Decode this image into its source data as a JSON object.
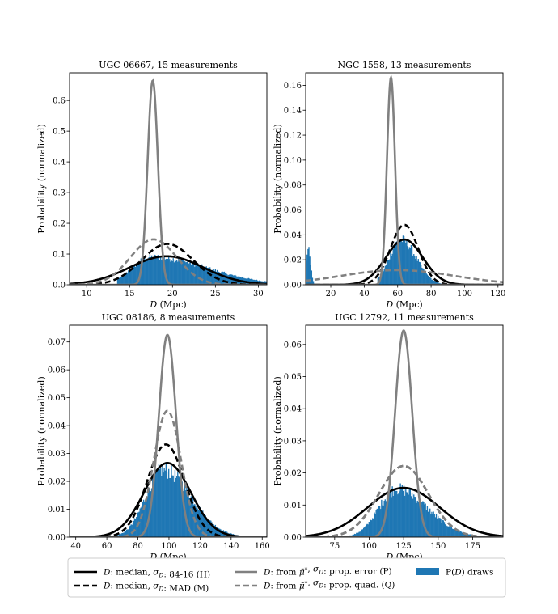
{
  "colors": {
    "hist": "#1f77b4",
    "median_line": "#000000",
    "prop_line": "#808080",
    "legend_frame": "#cccccc"
  },
  "legend": {
    "placement": "bottom-center",
    "entries": [
      {
        "key": "H",
        "label": "D: median, σ_D: 84-16 (H)",
        "color": "#000000",
        "style": "solid"
      },
      {
        "key": "M",
        "label": "D: median, σ_D: MAD (M)",
        "color": "#000000",
        "style": "dashed"
      },
      {
        "key": "P",
        "label": "D: from μ̄*, σ_D: prop. error (P)",
        "color": "#808080",
        "style": "solid"
      },
      {
        "key": "Q",
        "label": "D: from μ̄*, σ_D: prop. quad. (Q)",
        "color": "#808080",
        "style": "dashed"
      },
      {
        "key": "hist",
        "label": "P(D) draws",
        "color": "#1f77b4",
        "style": "patch"
      }
    ]
  },
  "chart_data": [
    {
      "type": "line",
      "title": "UGC 06667, 15 measurements",
      "xlabel": "D (Mpc)",
      "ylabel": "Probability (normalized)",
      "xlim": [
        8,
        31
      ],
      "ylim": [
        0,
        0.69
      ],
      "xticks": [
        10,
        15,
        20,
        25,
        30
      ],
      "yticks": [
        0.0,
        0.1,
        0.2,
        0.3,
        0.4,
        0.5,
        0.6
      ],
      "tick_decimals": 1,
      "hist": {
        "x_range": [
          13.5,
          31
        ],
        "peak_x": 17.5,
        "peak": 0.09,
        "sigma_left": 2.2,
        "sigma_right": 6.5,
        "noise": 0.12
      },
      "series": [
        {
          "key": "H",
          "mu": 19.3,
          "sigma": 4.3
        },
        {
          "key": "M",
          "mu": 19.4,
          "sigma": 3.0
        },
        {
          "key": "P",
          "mu": 17.7,
          "sigma": 0.6
        },
        {
          "key": "Q",
          "mu": 17.8,
          "sigma": 2.7
        }
      ]
    },
    {
      "type": "line",
      "title": "NGC 1558, 13 measurements",
      "xlabel": "D (Mpc)",
      "ylabel": "Probability (normalized)",
      "xlim": [
        5,
        123
      ],
      "ylim": [
        0,
        0.17
      ],
      "xticks": [
        20,
        40,
        60,
        80,
        100,
        120
      ],
      "yticks": [
        0.0,
        0.02,
        0.04,
        0.06,
        0.08,
        0.1,
        0.12,
        0.14,
        0.16
      ],
      "tick_decimals": 2,
      "hist": {
        "x_range": [
          48,
          86
        ],
        "peak_x": 62,
        "peak": 0.036,
        "sigma_left": 7,
        "sigma_right": 9,
        "noise": 0.12,
        "spike": {
          "x_range": [
            5,
            11
          ],
          "peak_x": 6.5,
          "peak": 0.029,
          "sigma": 1.4
        }
      },
      "series": [
        {
          "key": "H",
          "mu": 64,
          "sigma": 11
        },
        {
          "key": "M",
          "mu": 64,
          "sigma": 8.3
        },
        {
          "key": "P",
          "mu": 56,
          "sigma": 2.4
        },
        {
          "key": "Q",
          "mu": 60,
          "sigma": 34
        }
      ]
    },
    {
      "type": "line",
      "title": "UGC 08186, 8 measurements",
      "xlabel": "D (Mpc)",
      "ylabel": "Probability (normalized)",
      "xlim": [
        36,
        163
      ],
      "ylim": [
        0,
        0.076
      ],
      "xticks": [
        40,
        60,
        80,
        100,
        120,
        140,
        160
      ],
      "yticks": [
        0.0,
        0.01,
        0.02,
        0.03,
        0.04,
        0.05,
        0.06,
        0.07
      ],
      "tick_decimals": 2,
      "hist": {
        "x_range": [
          50,
          163
        ],
        "peak_x": 96,
        "peak": 0.024,
        "sigma_left": 11,
        "sigma_right": 18,
        "noise": 0.12
      },
      "series": [
        {
          "key": "H",
          "mu": 99,
          "sigma": 15
        },
        {
          "key": "M",
          "mu": 98,
          "sigma": 12
        },
        {
          "key": "P",
          "mu": 99,
          "sigma": 5.5
        },
        {
          "key": "Q",
          "mu": 99,
          "sigma": 8.8
        }
      ]
    },
    {
      "type": "line",
      "title": "UGC 12792, 11 measurements",
      "xlabel": "D (Mpc)",
      "ylabel": "Probability (normalized)",
      "xlim": [
        54,
        197
      ],
      "ylim": [
        0,
        0.066
      ],
      "xticks": [
        75,
        100,
        125,
        150,
        175
      ],
      "yticks": [
        0.0,
        0.01,
        0.02,
        0.03,
        0.04,
        0.05,
        0.06
      ],
      "tick_decimals": 2,
      "hist": {
        "x_range": [
          82,
          197
        ],
        "peak_x": 120,
        "peak": 0.015,
        "sigma_left": 13,
        "sigma_right": 22,
        "noise": 0.13
      },
      "series": [
        {
          "key": "H",
          "mu": 125,
          "sigma": 26
        },
        {
          "key": "M",
          "mu": 125,
          "sigma": 18
        },
        {
          "key": "P",
          "mu": 125,
          "sigma": 6.2
        },
        {
          "key": "Q",
          "mu": 125,
          "sigma": 18
        }
      ]
    }
  ]
}
